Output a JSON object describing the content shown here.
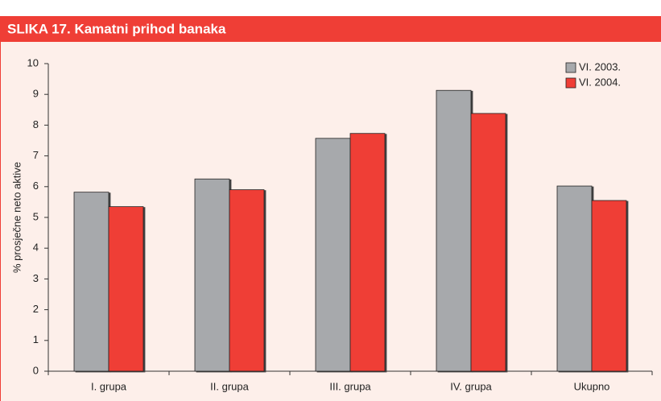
{
  "chart_data": {
    "type": "bar",
    "title": "SLIKA 17. Kamatni prihod banaka",
    "ylabel": "% prosječne neto aktive",
    "categories": [
      "I. grupa",
      "II. grupa",
      "III. grupa",
      "IV. grupa",
      "Ukupno"
    ],
    "series": [
      {
        "name": "VI. 2003.",
        "color": "#a7a9ac",
        "values": [
          5.82,
          6.25,
          7.57,
          9.13,
          6.02
        ]
      },
      {
        "name": "VI. 2004.",
        "color": "#ef3e36",
        "values": [
          5.35,
          5.9,
          7.73,
          8.38,
          5.55
        ]
      }
    ],
    "ylim": [
      0,
      10
    ],
    "yticks": [
      0,
      1,
      2,
      3,
      4,
      5,
      6,
      7,
      8,
      9,
      10
    ],
    "legend": "upper right",
    "grid": false
  }
}
